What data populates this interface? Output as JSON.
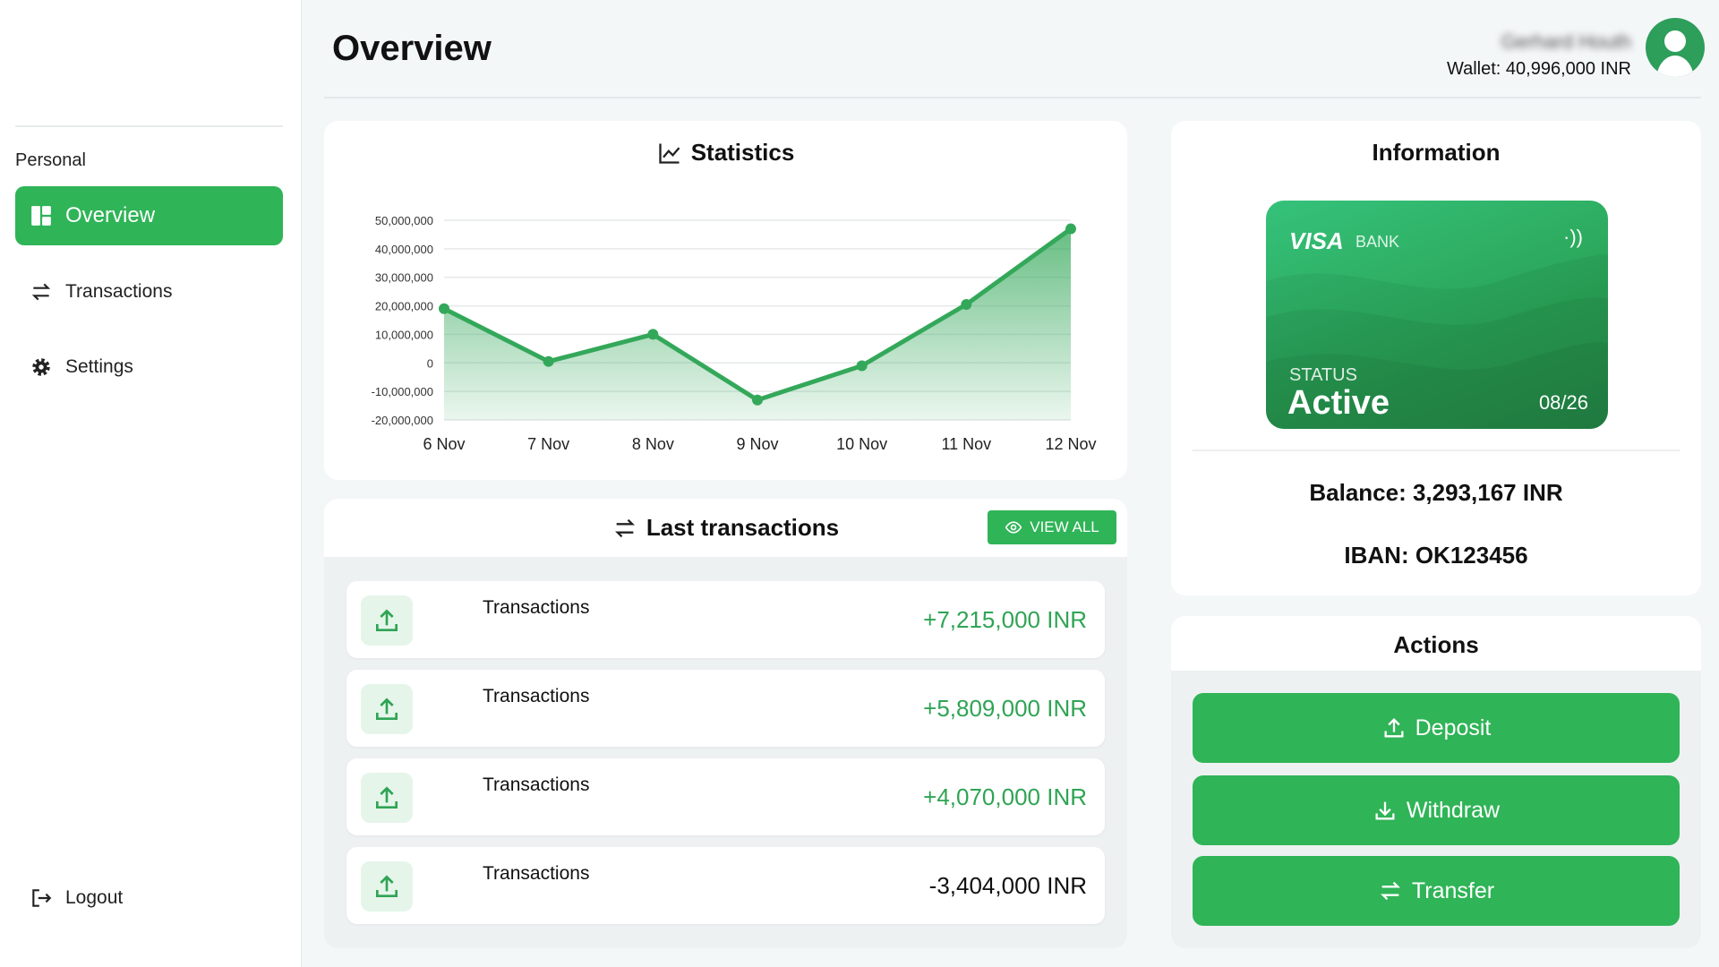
{
  "header": {
    "title": "Overview",
    "user_name": "Gerhard Houth",
    "wallet": "Wallet: 40,996,000 INR"
  },
  "sidebar": {
    "section": "Personal",
    "items": [
      {
        "label": "Overview",
        "icon": "dashboard-icon"
      },
      {
        "label": "Transactions",
        "icon": "swap-icon"
      },
      {
        "label": "Settings",
        "icon": "gear-icon"
      }
    ],
    "logout": "Logout"
  },
  "statistics": {
    "title": "Statistics"
  },
  "chart_data": {
    "type": "area",
    "title": "Statistics",
    "categories": [
      "6 Nov",
      "7 Nov",
      "8 Nov",
      "9 Nov",
      "10 Nov",
      "11 Nov",
      "12 Nov"
    ],
    "values": [
      19000000,
      500000,
      10000000,
      -13000000,
      -1000000,
      20500000,
      47000000
    ],
    "ylim": [
      -20000000,
      50000000
    ],
    "yticks": [
      "50,000,000",
      "40,000,000",
      "30,000,000",
      "20,000,000",
      "10,000,000",
      "0",
      "-10,000,000",
      "-20,000,000"
    ],
    "grid": true,
    "color": "#34a85a"
  },
  "transactions": {
    "title": "Last transactions",
    "view_all": "VIEW ALL",
    "rows": [
      {
        "label": "Transactions",
        "amount": "+7,215,000 INR",
        "positive": true
      },
      {
        "label": "Transactions",
        "amount": "+5,809,000 INR",
        "positive": true
      },
      {
        "label": "Transactions",
        "amount": "+4,070,000 INR",
        "positive": true
      },
      {
        "label": "Transactions",
        "amount": "-3,404,000 INR",
        "positive": false
      }
    ]
  },
  "information": {
    "title": "Information",
    "card_brand": "VISA",
    "card_bank": "BANK",
    "status_label": "STATUS",
    "status": "Active",
    "expiry": "08/26",
    "balance": "Balance: 3,293,167 INR",
    "iban": "IBAN: OK123456"
  },
  "actions": {
    "title": "Actions",
    "deposit": "Deposit",
    "withdraw": "Withdraw",
    "transfer": "Transfer"
  },
  "colors": {
    "accent": "#2fb457",
    "positive": "#2fa454"
  }
}
